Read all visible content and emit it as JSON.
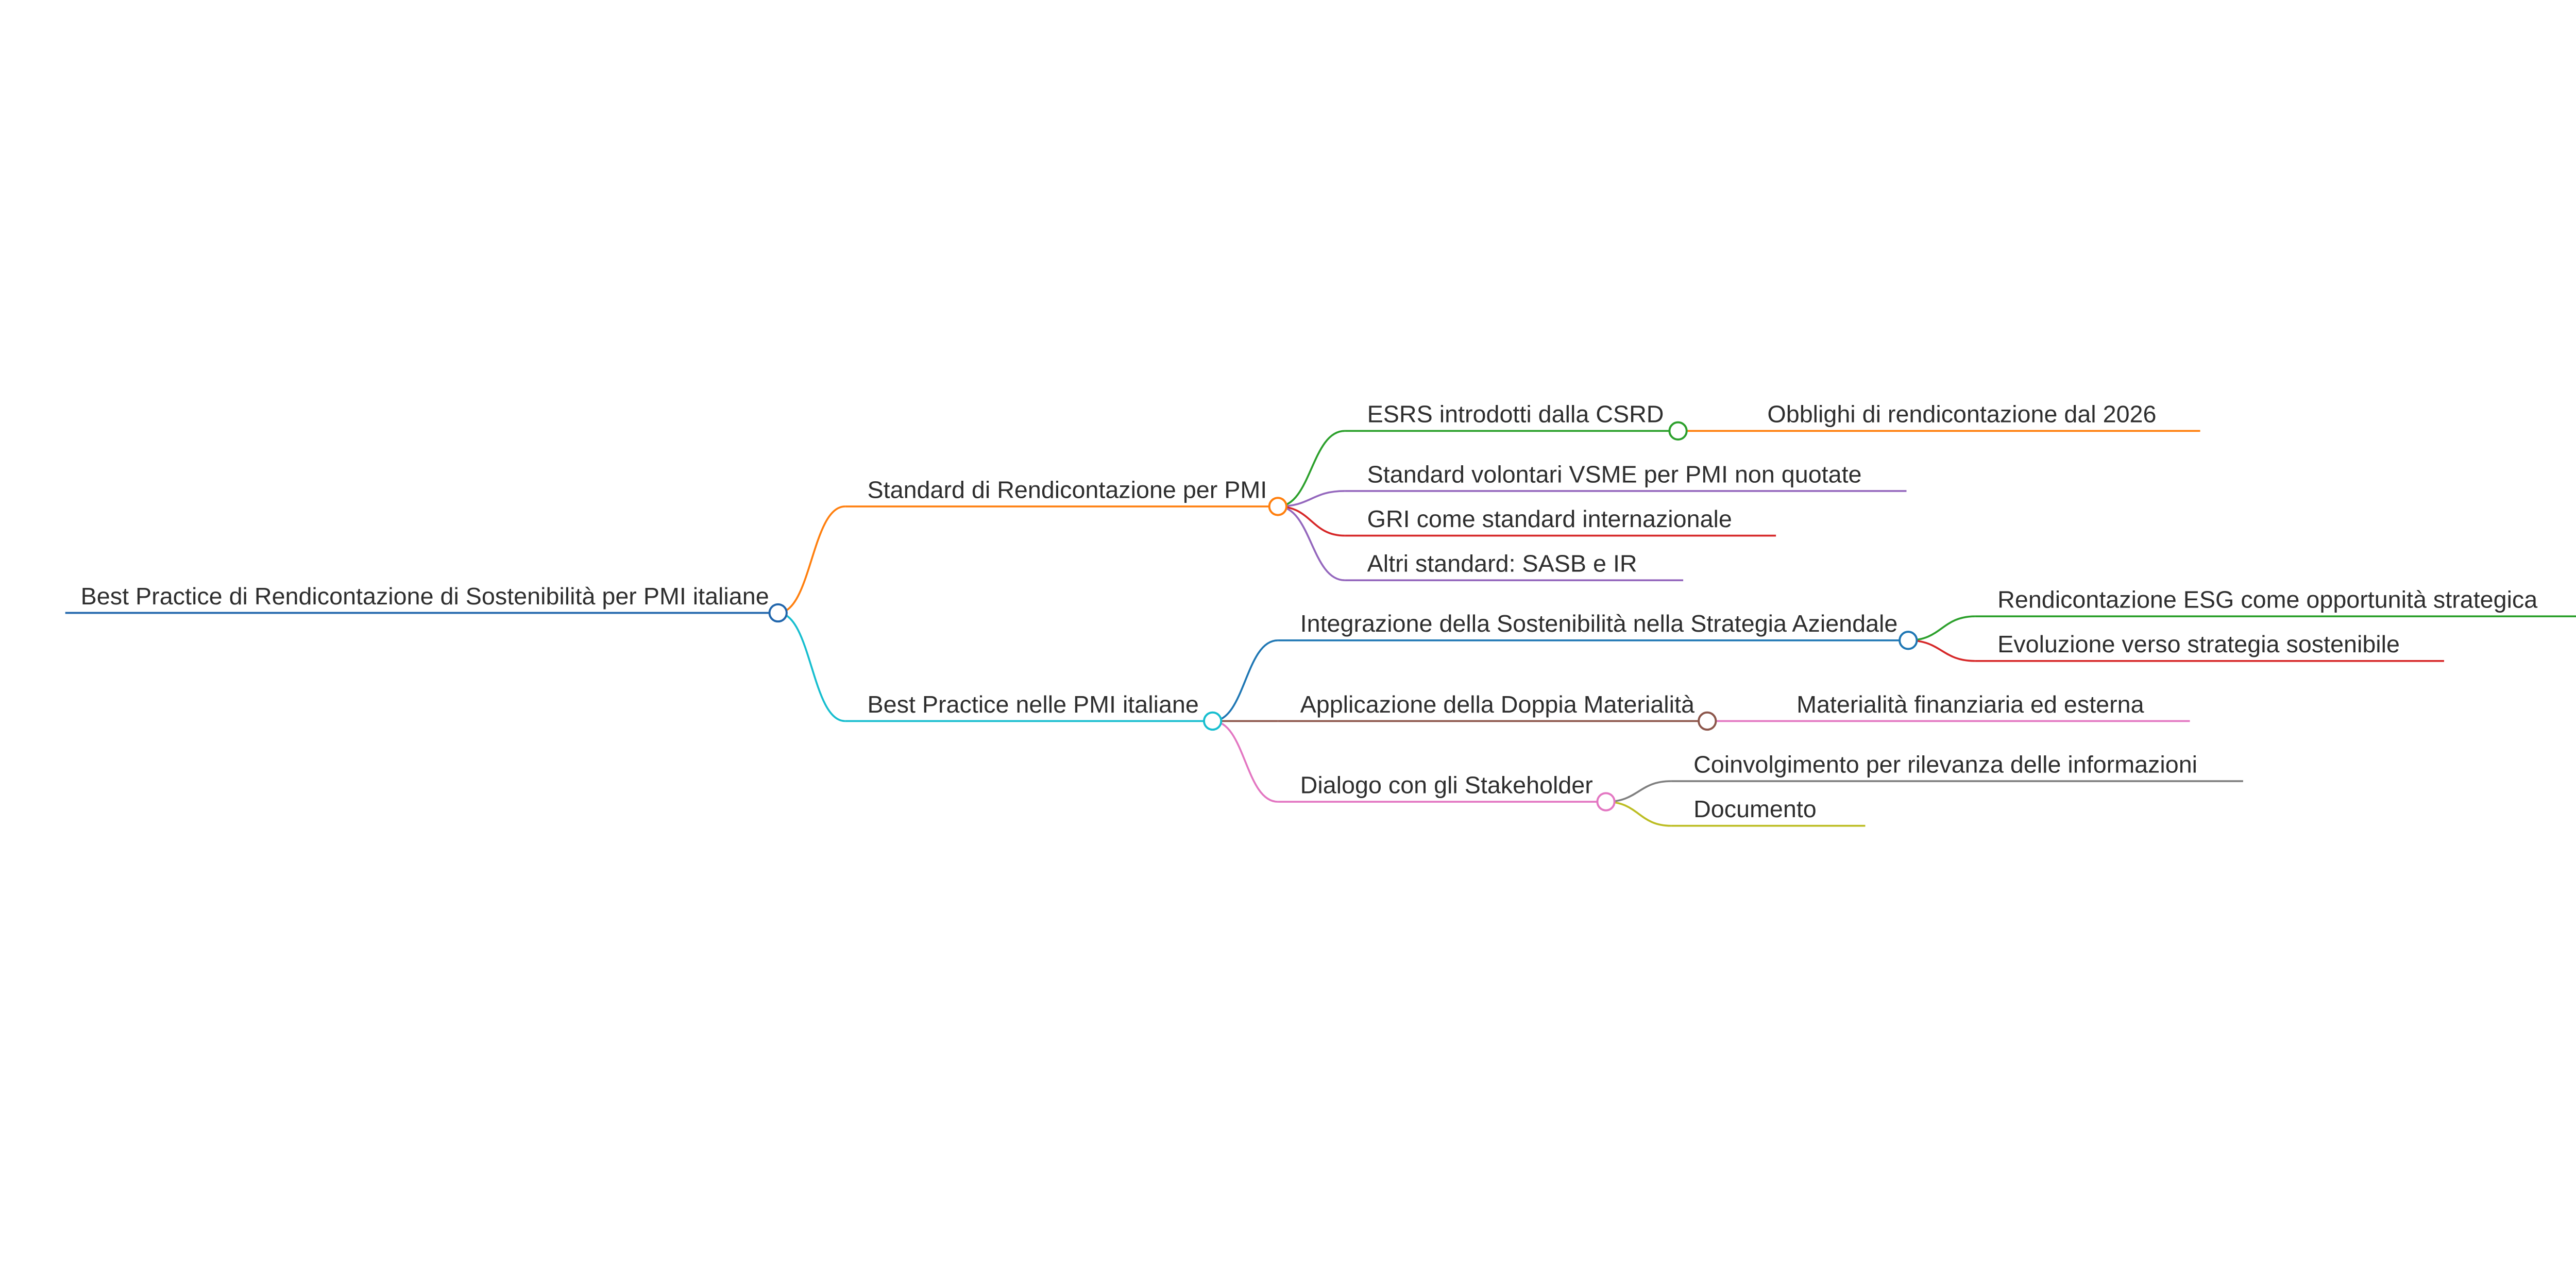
{
  "mindmap": {
    "root": {
      "label": "Best Practice di Rendicontazione di Sostenibilità per PMI italiane",
      "color": "#2166ac",
      "children": [
        {
          "label": "Standard di Rendicontazione per PMI",
          "color": "#ff7f0e",
          "children": [
            {
              "label": "ESRS introdotti dalla CSRD",
              "color": "#2ca02c",
              "children": [
                {
                  "label": "Obblighi di rendicontazione dal 2026",
                  "color": "#ff7f0e"
                }
              ]
            },
            {
              "label": "Standard volontari VSME per PMI non quotate",
              "color": "#9467bd"
            },
            {
              "label": "GRI come standard internazionale",
              "color": "#d62728"
            },
            {
              "label": "Altri standard: SASB e IR",
              "color": "#9467bd"
            }
          ]
        },
        {
          "label": "Best Practice nelle PMI italiane",
          "color": "#17becf",
          "children": [
            {
              "label": "Integrazione della Sostenibilità nella Strategia Aziendale",
              "color": "#1f77b4",
              "children": [
                {
                  "label": "Rendicontazione ESG come opportunità strategica",
                  "color": "#2ca02c"
                },
                {
                  "label": "Evoluzione verso strategia sostenibile",
                  "color": "#d62728"
                }
              ]
            },
            {
              "label": "Applicazione della Doppia Materialità",
              "color": "#8c564b",
              "children": [
                {
                  "label": "Materialità finanziaria ed esterna",
                  "color": "#e377c2"
                }
              ]
            },
            {
              "label": "Dialogo con gli Stakeholder",
              "color": "#e377c2",
              "children": [
                {
                  "label": "Coinvolgimento per rilevanza delle informazioni",
                  "color": "#7f7f7f"
                },
                {
                  "label": "Documento",
                  "color": "#bcbd22"
                }
              ]
            }
          ]
        }
      ]
    }
  }
}
